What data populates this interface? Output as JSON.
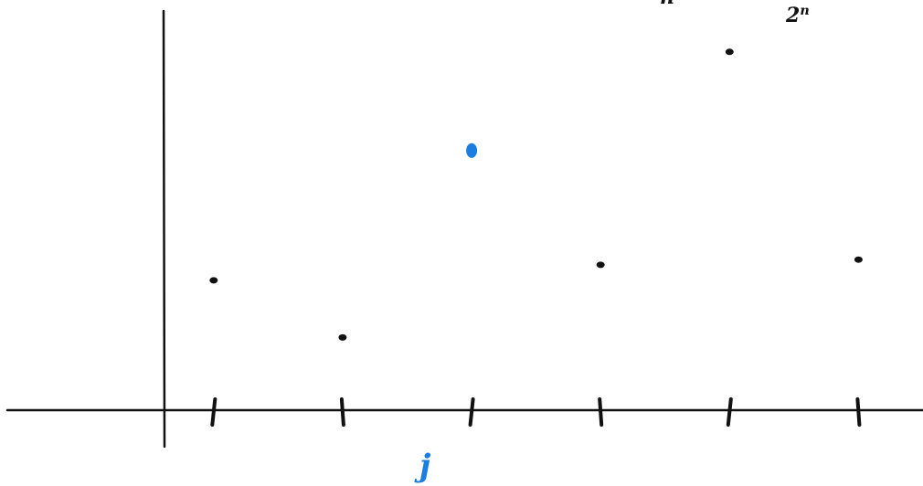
{
  "chart_data": {
    "type": "scatter",
    "title": "",
    "xlabel": "j",
    "ylabel": "",
    "xlim": [
      -0.6,
      6.5
    ],
    "ylim": [
      0,
      7.9
    ],
    "grid": false,
    "x_ticks": [
      1,
      2,
      3,
      4,
      5,
      6
    ],
    "points": [
      {
        "x": 1,
        "y": 2.5,
        "highlight": false
      },
      {
        "x": 2,
        "y": 1.4,
        "highlight": false
      },
      {
        "x": 3,
        "y": 5.0,
        "highlight": true
      },
      {
        "x": 4,
        "y": 2.8,
        "highlight": false
      },
      {
        "x": 5,
        "y": 6.9,
        "highlight": false
      },
      {
        "x": 6,
        "y": 2.9,
        "highlight": false
      }
    ],
    "annotations": [
      {
        "base": "n",
        "sup": "",
        "color": "#111111"
      },
      {
        "base": "2",
        "sup": "n",
        "color": "#111111"
      }
    ]
  },
  "colors": {
    "ink": "#111111",
    "highlight": "#1a7de0",
    "background": "#ffffff"
  }
}
